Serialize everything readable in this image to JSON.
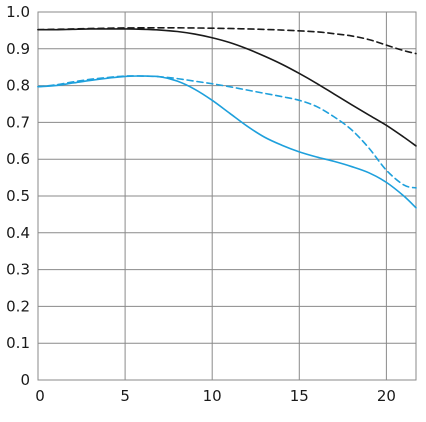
{
  "chart_data": {
    "type": "line",
    "xlim": [
      0,
      21.7
    ],
    "ylim": [
      0,
      1.0
    ],
    "grid": true,
    "legend": "none",
    "x_ticks": [
      "0",
      "5",
      "10",
      "15",
      "20"
    ],
    "y_ticks": [
      "0",
      "0.1",
      "0.2",
      "0.3",
      "0.4",
      "0.5",
      "0.6",
      "0.7",
      "0.8",
      "0.9",
      "1.0"
    ],
    "series": [
      {
        "color": "#1a1a1a",
        "dash": "solid",
        "x": [
          0,
          1,
          2,
          3,
          4,
          5,
          6,
          7,
          8,
          9,
          10,
          11,
          12,
          13,
          14,
          15,
          16,
          17,
          18,
          19,
          20,
          21,
          21.7
        ],
        "y": [
          0.952,
          0.952,
          0.953,
          0.954,
          0.954,
          0.954,
          0.953,
          0.951,
          0.947,
          0.94,
          0.93,
          0.917,
          0.9,
          0.88,
          0.858,
          0.833,
          0.806,
          0.777,
          0.748,
          0.72,
          0.692,
          0.66,
          0.636
        ]
      },
      {
        "color": "#1a1a1a",
        "dash": "dashed",
        "x": [
          0,
          2,
          4,
          6,
          8,
          10,
          12,
          14,
          16,
          17,
          18,
          19,
          20,
          21,
          21.7
        ],
        "y": [
          0.952,
          0.954,
          0.956,
          0.957,
          0.957,
          0.956,
          0.954,
          0.951,
          0.946,
          0.941,
          0.935,
          0.925,
          0.91,
          0.895,
          0.887
        ]
      },
      {
        "color": "#1ea0dc",
        "dash": "solid",
        "x": [
          0,
          1,
          2,
          3,
          4,
          5,
          6,
          7,
          8,
          9,
          10,
          11,
          12,
          13,
          14,
          15,
          16,
          17,
          18,
          19,
          20,
          21,
          21.7
        ],
        "y": [
          0.797,
          0.8,
          0.807,
          0.814,
          0.82,
          0.825,
          0.826,
          0.824,
          0.812,
          0.79,
          0.76,
          0.725,
          0.69,
          0.66,
          0.638,
          0.62,
          0.606,
          0.594,
          0.58,
          0.563,
          0.537,
          0.5,
          0.468
        ]
      },
      {
        "color": "#1ea0dc",
        "dash": "dashed",
        "x": [
          0,
          1,
          2,
          3,
          4,
          5,
          6,
          7,
          8,
          9,
          10,
          11,
          12,
          13,
          14,
          15,
          16,
          17,
          18,
          19,
          20,
          21,
          21.7
        ],
        "y": [
          0.797,
          0.802,
          0.81,
          0.817,
          0.822,
          0.826,
          0.826,
          0.824,
          0.819,
          0.812,
          0.805,
          0.797,
          0.788,
          0.779,
          0.77,
          0.76,
          0.743,
          0.715,
          0.68,
          0.63,
          0.57,
          0.53,
          0.522
        ]
      }
    ]
  }
}
